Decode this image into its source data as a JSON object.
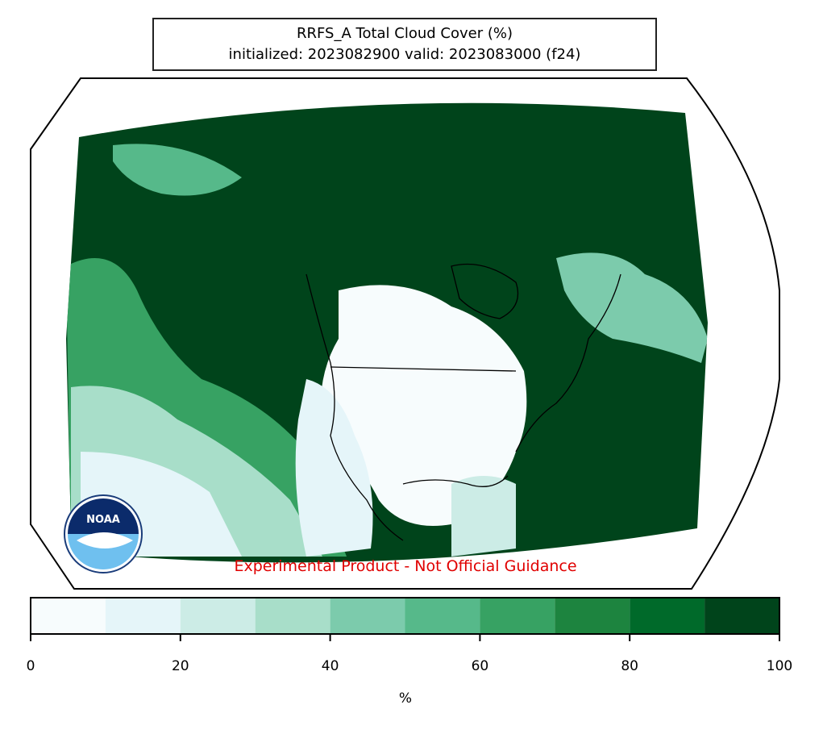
{
  "title": {
    "line1": "RRFS_A Total Cloud Cover (%)",
    "line2": "initialized: 2023082900 valid: 2023083000 (f24)"
  },
  "disclaimer": "Experimental Product - Not Official Guidance",
  "logo": {
    "text": "NOAA",
    "icon": "noaa-logo"
  },
  "colorbar": {
    "unit": "%",
    "ticks": [
      "0",
      "20",
      "40",
      "60",
      "80",
      "100"
    ],
    "bins": [
      {
        "from": 0,
        "to": 10,
        "color": "#f7fcfd"
      },
      {
        "from": 10,
        "to": 20,
        "color": "#e5f5f9"
      },
      {
        "from": 20,
        "to": 30,
        "color": "#ccece6"
      },
      {
        "from": 30,
        "to": 40,
        "color": "#a8dec9"
      },
      {
        "from": 40,
        "to": 50,
        "color": "#7ccbac"
      },
      {
        "from": 50,
        "to": 60,
        "color": "#56b98a"
      },
      {
        "from": 60,
        "to": 70,
        "color": "#37a263"
      },
      {
        "from": 70,
        "to": 80,
        "color": "#1d843f"
      },
      {
        "from": 80,
        "to": 90,
        "color": "#006a2a"
      },
      {
        "from": 90,
        "to": 100,
        "color": "#00441b"
      }
    ]
  },
  "colors": {
    "overcast": "#00441b",
    "clear": "#f7fcfd",
    "boundary": "#000000",
    "disclaimer": "#e00000"
  }
}
